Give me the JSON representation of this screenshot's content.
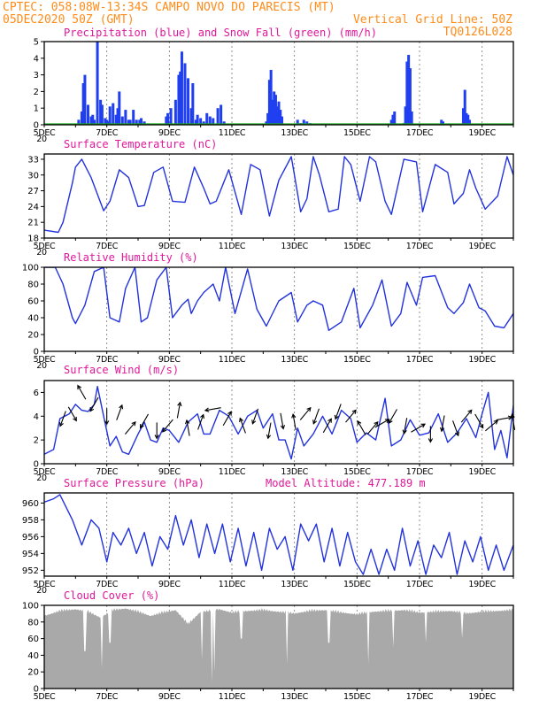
{
  "header": {
    "line1": "CPTEC:  058:08W-13:34S  CAMPO NOVO DO PARECIS (MT)",
    "date_left": "05DEC2020 50Z (GMT)",
    "grid_note": "Vertical Grid Line: 50Z",
    "code": "TQ0126L028"
  },
  "colors": {
    "header": "#ff8c1a",
    "title": "#e0189a",
    "line": "#2233dd",
    "precip": "#1f3ff0",
    "snow": "#1aa81a",
    "cloud": "#a9a9a9"
  },
  "x_axis": {
    "start_label": "5DEC",
    "labels": [
      "5DEC",
      "7DEC",
      "9DEC",
      "11DEC",
      "13DEC",
      "15DEC",
      "17DEC",
      "19DEC"
    ],
    "grid_days": [
      5,
      7,
      9,
      11,
      13,
      15,
      17,
      19
    ],
    "day_range": [
      5,
      20
    ],
    "overlap_glyph": "20"
  },
  "chart_data": [
    {
      "id": "precip",
      "type": "bar",
      "title": "Precipitation (blue) and Snow Fall (green) (mm/h)",
      "ylim": [
        0,
        5
      ],
      "yticks": [
        "0",
        "1",
        "2",
        "3",
        "4",
        "5"
      ],
      "series": [
        {
          "name": "Precipitation",
          "x": [
            6.1,
            6.2,
            6.25,
            6.3,
            6.4,
            6.5,
            6.55,
            6.6,
            6.7,
            6.8,
            6.85,
            6.95,
            7.0,
            7.05,
            7.1,
            7.2,
            7.3,
            7.35,
            7.4,
            7.5,
            7.6,
            7.7,
            7.75,
            7.85,
            7.95,
            8.05,
            8.1,
            8.2,
            8.9,
            8.95,
            9.05,
            9.2,
            9.3,
            9.35,
            9.4,
            9.5,
            9.6,
            9.7,
            9.75,
            9.85,
            9.9,
            10.0,
            10.1,
            10.2,
            10.3,
            10.4,
            10.55,
            10.65,
            10.75,
            12.1,
            12.15,
            12.2,
            12.25,
            12.3,
            12.35,
            12.4,
            12.45,
            12.5,
            12.55,
            12.6,
            13.1,
            13.2,
            13.3,
            13.4,
            13.5,
            16.1,
            16.15,
            16.2,
            16.5,
            16.55,
            16.6,
            16.65,
            16.7,
            16.75,
            17.7,
            17.75,
            18.4,
            18.45,
            18.5,
            18.55,
            18.6
          ],
          "values": [
            0.3,
            0.8,
            2.5,
            3.0,
            1.2,
            0.5,
            0.6,
            0.3,
            5.0,
            1.5,
            1.2,
            0.4,
            0.3,
            0.2,
            1.1,
            1.3,
            0.6,
            1.0,
            2.0,
            0.5,
            0.9,
            0.3,
            0.3,
            0.9,
            0.3,
            0.3,
            0.4,
            0.2,
            0.5,
            0.7,
            1.0,
            1.5,
            3.0,
            3.2,
            4.4,
            3.7,
            2.8,
            1.0,
            2.5,
            0.3,
            0.6,
            0.4,
            0.2,
            0.7,
            0.5,
            0.4,
            1.0,
            1.2,
            0.2,
            0.2,
            0.7,
            2.7,
            3.3,
            1.5,
            2.0,
            1.8,
            1.1,
            1.4,
            0.9,
            0.5,
            0.3,
            0.1,
            0.3,
            0.2,
            0.1,
            0.3,
            0.6,
            0.8,
            0.1,
            1.1,
            3.8,
            4.2,
            3.4,
            0.8,
            0.3,
            0.2,
            1.0,
            2.1,
            0.7,
            0.6,
            0.3
          ]
        },
        {
          "name": "Snow Fall",
          "x": [
            5,
            20
          ],
          "values": [
            0,
            0
          ]
        }
      ]
    },
    {
      "id": "temp",
      "type": "line",
      "title": "Surface Temperature (nC)",
      "ylim": [
        18,
        34
      ],
      "yticks": [
        "18",
        "21",
        "24",
        "27",
        "30",
        "33"
      ],
      "series": [
        {
          "name": "Temperature",
          "x": [
            5.0,
            5.45,
            5.6,
            5.9,
            6.0,
            6.2,
            6.5,
            6.9,
            7.1,
            7.4,
            7.7,
            8.0,
            8.2,
            8.5,
            8.8,
            9.1,
            9.5,
            9.8,
            10.1,
            10.3,
            10.5,
            10.9,
            11.3,
            11.6,
            11.9,
            12.2,
            12.5,
            12.9,
            13.2,
            13.4,
            13.6,
            13.8,
            14.1,
            14.4,
            14.6,
            14.8,
            15.1,
            15.4,
            15.6,
            15.9,
            16.1,
            16.5,
            16.9,
            17.1,
            17.5,
            17.9,
            18.1,
            18.4,
            18.6,
            18.8,
            19.1,
            19.5,
            19.8,
            20.0
          ],
          "values": [
            19.5,
            19.1,
            21.0,
            28.5,
            31.5,
            33.0,
            29.5,
            23.2,
            25.0,
            31.0,
            29.5,
            24.0,
            24.2,
            30.5,
            31.5,
            25.0,
            24.8,
            31.5,
            27.5,
            24.5,
            25.0,
            31.0,
            22.5,
            32.0,
            31.0,
            22.2,
            29.0,
            33.5,
            23.0,
            25.5,
            33.5,
            30.0,
            23.0,
            23.5,
            33.5,
            32.0,
            25.0,
            33.5,
            32.5,
            25.0,
            22.5,
            33.0,
            32.5,
            23.0,
            32.0,
            30.5,
            24.5,
            26.5,
            31.0,
            27.5,
            23.5,
            26.0,
            33.5,
            30.0
          ]
        }
      ]
    },
    {
      "id": "rh",
      "type": "line",
      "title": "Relative Humidity (%)",
      "ylim": [
        0,
        100
      ],
      "yticks": [
        "0",
        "20",
        "40",
        "60",
        "80",
        "100"
      ],
      "series": [
        {
          "name": "Humidity",
          "x": [
            5.0,
            5.35,
            5.6,
            5.9,
            6.0,
            6.3,
            6.6,
            6.9,
            7.1,
            7.4,
            7.6,
            7.9,
            8.1,
            8.3,
            8.6,
            8.9,
            9.1,
            9.4,
            9.6,
            9.7,
            9.9,
            10.1,
            10.4,
            10.6,
            10.8,
            11.1,
            11.5,
            11.8,
            12.1,
            12.5,
            12.9,
            13.1,
            13.4,
            13.6,
            13.9,
            14.1,
            14.5,
            14.9,
            15.1,
            15.5,
            15.8,
            16.1,
            16.4,
            16.6,
            16.9,
            17.1,
            17.5,
            17.9,
            18.1,
            18.4,
            18.6,
            18.9,
            19.1,
            19.4,
            19.7,
            20.0
          ],
          "values": [
            100,
            100,
            80,
            40,
            33,
            55,
            95,
            100,
            40,
            35,
            75,
            100,
            35,
            40,
            85,
            100,
            40,
            55,
            62,
            45,
            60,
            70,
            80,
            60,
            100,
            45,
            98,
            50,
            30,
            60,
            70,
            35,
            55,
            60,
            55,
            25,
            35,
            75,
            28,
            55,
            85,
            30,
            45,
            82,
            55,
            88,
            90,
            52,
            45,
            58,
            80,
            52,
            48,
            30,
            28,
            45
          ]
        }
      ]
    },
    {
      "id": "wind",
      "type": "line",
      "title": "Surface Wind (m/s)",
      "ylim": [
        0,
        7
      ],
      "yticks": [
        "0",
        "2",
        "4",
        "6"
      ],
      "series": [
        {
          "name": "Wind speed",
          "x": [
            5.0,
            5.3,
            5.5,
            5.8,
            6.0,
            6.2,
            6.4,
            6.6,
            6.7,
            6.9,
            7.1,
            7.3,
            7.5,
            7.7,
            8.0,
            8.2,
            8.4,
            8.6,
            8.8,
            9.0,
            9.3,
            9.6,
            9.9,
            10.1,
            10.3,
            10.6,
            10.9,
            11.2,
            11.5,
            11.8,
            12.0,
            12.3,
            12.5,
            12.7,
            12.9,
            13.1,
            13.3,
            13.6,
            13.9,
            14.2,
            14.5,
            14.8,
            15.0,
            15.3,
            15.6,
            15.9,
            16.1,
            16.4,
            16.7,
            17.0,
            17.3,
            17.6,
            17.9,
            18.2,
            18.5,
            18.8,
            19.0,
            19.2,
            19.4,
            19.6,
            19.8,
            20.0
          ],
          "values": [
            0.8,
            1.2,
            3.8,
            4.2,
            5.0,
            4.5,
            4.4,
            5.0,
            6.5,
            4.0,
            1.5,
            2.3,
            1.0,
            0.8,
            2.5,
            3.5,
            2.0,
            1.8,
            3.0,
            2.8,
            1.8,
            3.5,
            4.2,
            2.5,
            2.5,
            4.5,
            4.0,
            2.5,
            4.0,
            4.5,
            3.0,
            4.2,
            2.0,
            2.0,
            0.4,
            3.0,
            1.5,
            2.5,
            4.0,
            2.5,
            4.5,
            3.8,
            1.8,
            2.6,
            2.0,
            5.5,
            1.5,
            2.0,
            3.7,
            2.4,
            2.6,
            4.2,
            1.8,
            2.6,
            3.8,
            2.2,
            4.2,
            6.0,
            1.2,
            2.8,
            0.5,
            4.9
          ]
        }
      ],
      "arrow_days": [
        5.6,
        5.9,
        6.2,
        6.6,
        7.0,
        7.4,
        7.75,
        8.2,
        8.6,
        8.95,
        9.3,
        9.6,
        10.0,
        10.4,
        10.85,
        11.35,
        11.75,
        12.2,
        12.6,
        13.0,
        13.35,
        13.7,
        14.05,
        14.4,
        14.8,
        15.15,
        15.5,
        15.8,
        16.15,
        16.55,
        16.95,
        17.35,
        17.75,
        18.15,
        18.5,
        18.9,
        19.3,
        19.7,
        20.0
      ],
      "arrow_speed": [
        3.8,
        4.2,
        6.0,
        5.0,
        4.0,
        4.3,
        3.0,
        3.6,
        2.8,
        3.2,
        4.5,
        3.0,
        3.5,
        4.6,
        3.8,
        3.2,
        4.0,
        2.8,
        3.6,
        3.5,
        4.2,
        4.0,
        3.2,
        4.4,
        4.0,
        3.0,
        3.0,
        3.4,
        4.0,
        3.2,
        3.0,
        2.5,
        3.4,
        3.0,
        4.0,
        3.6,
        3.2,
        3.8,
        3.5
      ],
      "arrow_dir": [
        200,
        150,
        330,
        210,
        180,
        20,
        40,
        210,
        180,
        220,
        10,
        350,
        20,
        260,
        30,
        340,
        200,
        190,
        170,
        350,
        40,
        200,
        30,
        200,
        40,
        330,
        40,
        60,
        210,
        190,
        60,
        180,
        190,
        160,
        40,
        150,
        50,
        80,
        350
      ]
    },
    {
      "id": "pres",
      "type": "line",
      "title": "Surface Pressure (hPa)",
      "subtitle": "Model Altitude: 477.189 m",
      "ylim": [
        951.3,
        961.2
      ],
      "yticks": [
        "952",
        "954",
        "956",
        "958",
        "960"
      ],
      "series": [
        {
          "name": "Pressure",
          "x": [
            5.0,
            5.3,
            5.5,
            5.9,
            6.2,
            6.5,
            6.75,
            7.0,
            7.2,
            7.45,
            7.7,
            7.95,
            8.2,
            8.45,
            8.7,
            8.95,
            9.2,
            9.45,
            9.7,
            9.95,
            10.2,
            10.45,
            10.7,
            10.95,
            11.2,
            11.45,
            11.7,
            11.95,
            12.2,
            12.45,
            12.7,
            12.95,
            13.2,
            13.45,
            13.7,
            13.95,
            14.2,
            14.45,
            14.7,
            14.95,
            15.2,
            15.45,
            15.7,
            15.95,
            16.2,
            16.45,
            16.7,
            16.95,
            17.2,
            17.45,
            17.7,
            17.95,
            18.2,
            18.45,
            18.7,
            18.95,
            19.2,
            19.45,
            19.7,
            20.0
          ],
          "values": [
            960.1,
            960.5,
            961.0,
            958.0,
            955.0,
            958.0,
            957.0,
            953.0,
            956.5,
            955.0,
            957.0,
            954.0,
            956.5,
            952.5,
            956.0,
            954.5,
            958.5,
            955.0,
            958.0,
            953.5,
            957.5,
            954.0,
            957.5,
            953.0,
            957.0,
            952.5,
            956.5,
            952.0,
            957.0,
            954.5,
            956.0,
            952.0,
            957.5,
            955.5,
            957.5,
            953.0,
            957.0,
            952.5,
            956.5,
            953.0,
            951.5,
            954.5,
            951.5,
            954.5,
            952.0,
            957.0,
            952.5,
            955.5,
            951.5,
            955.0,
            953.5,
            956.5,
            951.5,
            955.5,
            953.0,
            956.0,
            952.0,
            955.0,
            952.0,
            955.0
          ]
        }
      ]
    },
    {
      "id": "cloud",
      "type": "bar",
      "title": "Cloud Cover (%)",
      "ylim": [
        0,
        100
      ],
      "yticks": [
        "0",
        "20",
        "40",
        "60",
        "80",
        "100"
      ],
      "series": [
        {
          "name": "Cloud cover",
          "x": [
            5.0,
            5.5,
            6.0,
            6.4,
            6.8,
            7.2,
            7.6,
            8.0,
            8.4,
            8.8,
            9.2,
            9.6,
            10.0,
            10.3,
            10.6,
            11.0,
            11.5,
            12.0,
            12.5,
            13.0,
            13.5,
            14.0,
            14.5,
            15.0,
            15.5,
            16.0,
            16.5,
            17.0,
            17.5,
            18.0,
            18.5,
            19.0,
            19.5,
            20.0
          ],
          "values": [
            90,
            96,
            98,
            95,
            88,
            97,
            99,
            95,
            90,
            94,
            97,
            80,
            95,
            96,
            98,
            94,
            96,
            97,
            95,
            93,
            96,
            97,
            94,
            92,
            95,
            96,
            97,
            94,
            95,
            96,
            93,
            95,
            96,
            97
          ],
          "dips_x": [
            6.3,
            6.85,
            7.1,
            10.05,
            10.35,
            10.45,
            11.3,
            12.75,
            14.1,
            15.35,
            16.15,
            17.2,
            18.35
          ],
          "dips_v": [
            45,
            25,
            55,
            35,
            8,
            20,
            60,
            30,
            55,
            30,
            50,
            55,
            60
          ]
        }
      ]
    }
  ]
}
